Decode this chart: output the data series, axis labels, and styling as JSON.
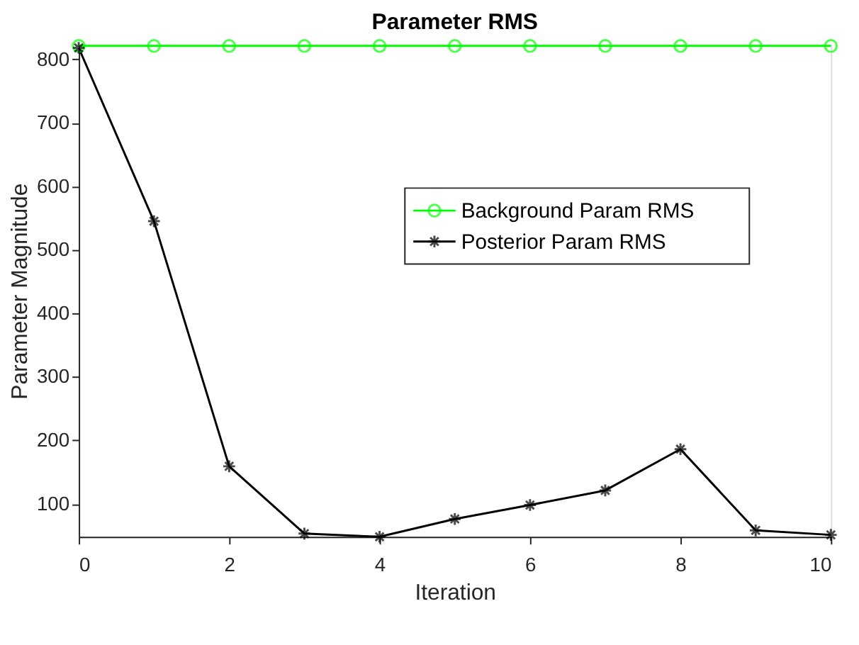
{
  "chart_data": {
    "type": "line",
    "title": "Parameter RMS",
    "xlabel": "Iteration",
    "ylabel": "Parameter Magnitude",
    "x": [
      0,
      1,
      2,
      3,
      4,
      5,
      6,
      7,
      8,
      9,
      10
    ],
    "series": [
      {
        "name": "Background Param RMS",
        "color": "#00ff00",
        "marker": "circle",
        "values": [
          821,
          821,
          821,
          821,
          821,
          821,
          821,
          821,
          821,
          821,
          821
        ]
      },
      {
        "name": "Posterior Param RMS",
        "color": "#000000",
        "marker": "cross",
        "values": [
          818,
          545,
          159,
          53,
          48,
          76,
          98,
          121,
          186,
          58,
          51
        ]
      }
    ],
    "xlim": [
      0,
      10
    ],
    "xticks": [
      0,
      2,
      4,
      6,
      8,
      10
    ],
    "ylim": [
      48,
      823
    ],
    "yticks": [
      100,
      200,
      300,
      400,
      500,
      600,
      700,
      800
    ],
    "grid": false,
    "legend": "right",
    "line_style": "solid"
  }
}
